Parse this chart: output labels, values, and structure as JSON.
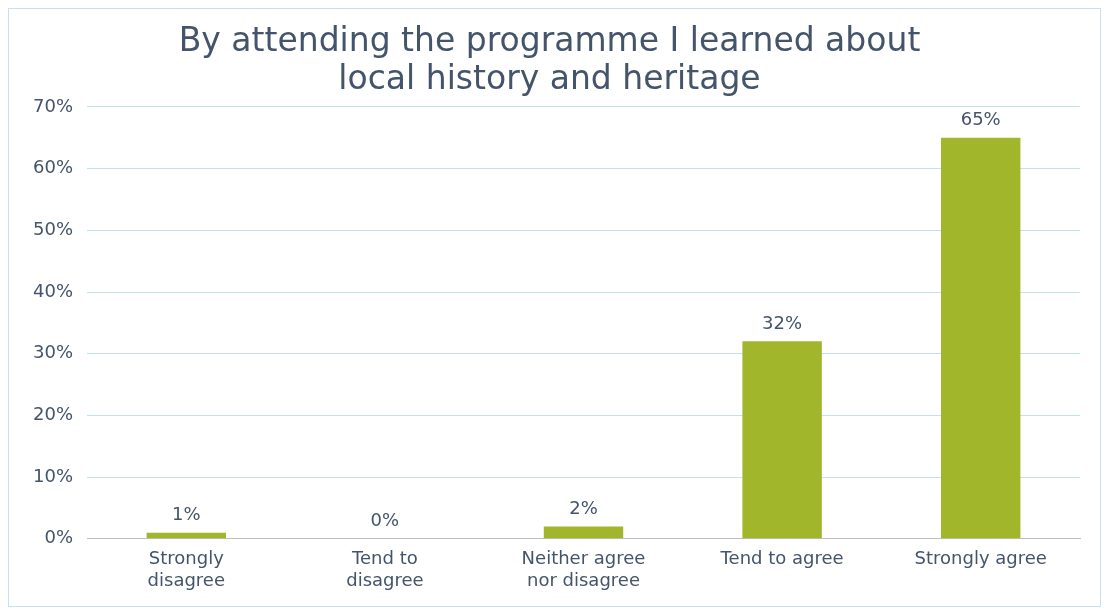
{
  "chart_data": {
    "type": "bar",
    "title": "By attending the programme I learned about local history and heritage",
    "categories": [
      "Strongly disagree",
      "Tend to disagree",
      "Neither agree nor disagree",
      "Tend to agree",
      "Strongly agree"
    ],
    "values": [
      1,
      0,
      2,
      32,
      65
    ],
    "value_labels": [
      "1%",
      "0%",
      "2%",
      "32%",
      "65%"
    ],
    "color": "#a2b62c",
    "ylim": [
      0,
      70
    ],
    "yticks": [
      {
        "value": 0,
        "label": "0%"
      },
      {
        "value": 10,
        "label": "10%"
      },
      {
        "value": 20,
        "label": "20%"
      },
      {
        "value": 30,
        "label": "30%"
      },
      {
        "value": 40,
        "label": "40%"
      },
      {
        "value": 50,
        "label": "50%"
      },
      {
        "value": 60,
        "label": "60%"
      },
      {
        "value": 70,
        "label": "70%"
      }
    ],
    "grid": "y",
    "legend": false
  }
}
